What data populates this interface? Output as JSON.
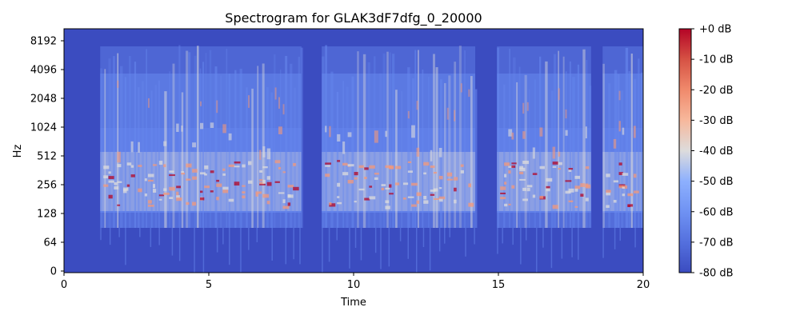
{
  "chart_data": {
    "type": "heatmap",
    "title": "Spectrogram for GLAK3dF7dfg_0_20000",
    "xlabel": "Time",
    "ylabel": "Hz",
    "xlim": [
      0,
      20
    ],
    "x_ticks": [
      0,
      5,
      10,
      15,
      20
    ],
    "y_scale": "log-like (symlog)",
    "y_ticks": [
      "0",
      "64",
      "128",
      "256",
      "512",
      "1024",
      "2048",
      "4096",
      "8192"
    ],
    "colorbar": {
      "label_ticks": [
        "+0 dB",
        "-10 dB",
        "-20 dB",
        "-30 dB",
        "-40 dB",
        "-50 dB",
        "-60 dB",
        "-70 dB",
        "-80 dB"
      ],
      "range_db": [
        -80,
        0
      ],
      "colormap": "coolwarm"
    },
    "colors": {
      "floor": "#3b4cc0",
      "low": "#6788ee",
      "mid": "#dddcdc",
      "high": "#f4987a",
      "peak": "#b40426"
    },
    "speech_segments": [
      {
        "start": 1.25,
        "end": 8.2
      },
      {
        "start": 8.9,
        "end": 14.2
      },
      {
        "start": 14.95,
        "end": 18.2
      },
      {
        "start": 18.6,
        "end": 20.0
      }
    ],
    "grid": false,
    "legend": "colorbar right"
  }
}
